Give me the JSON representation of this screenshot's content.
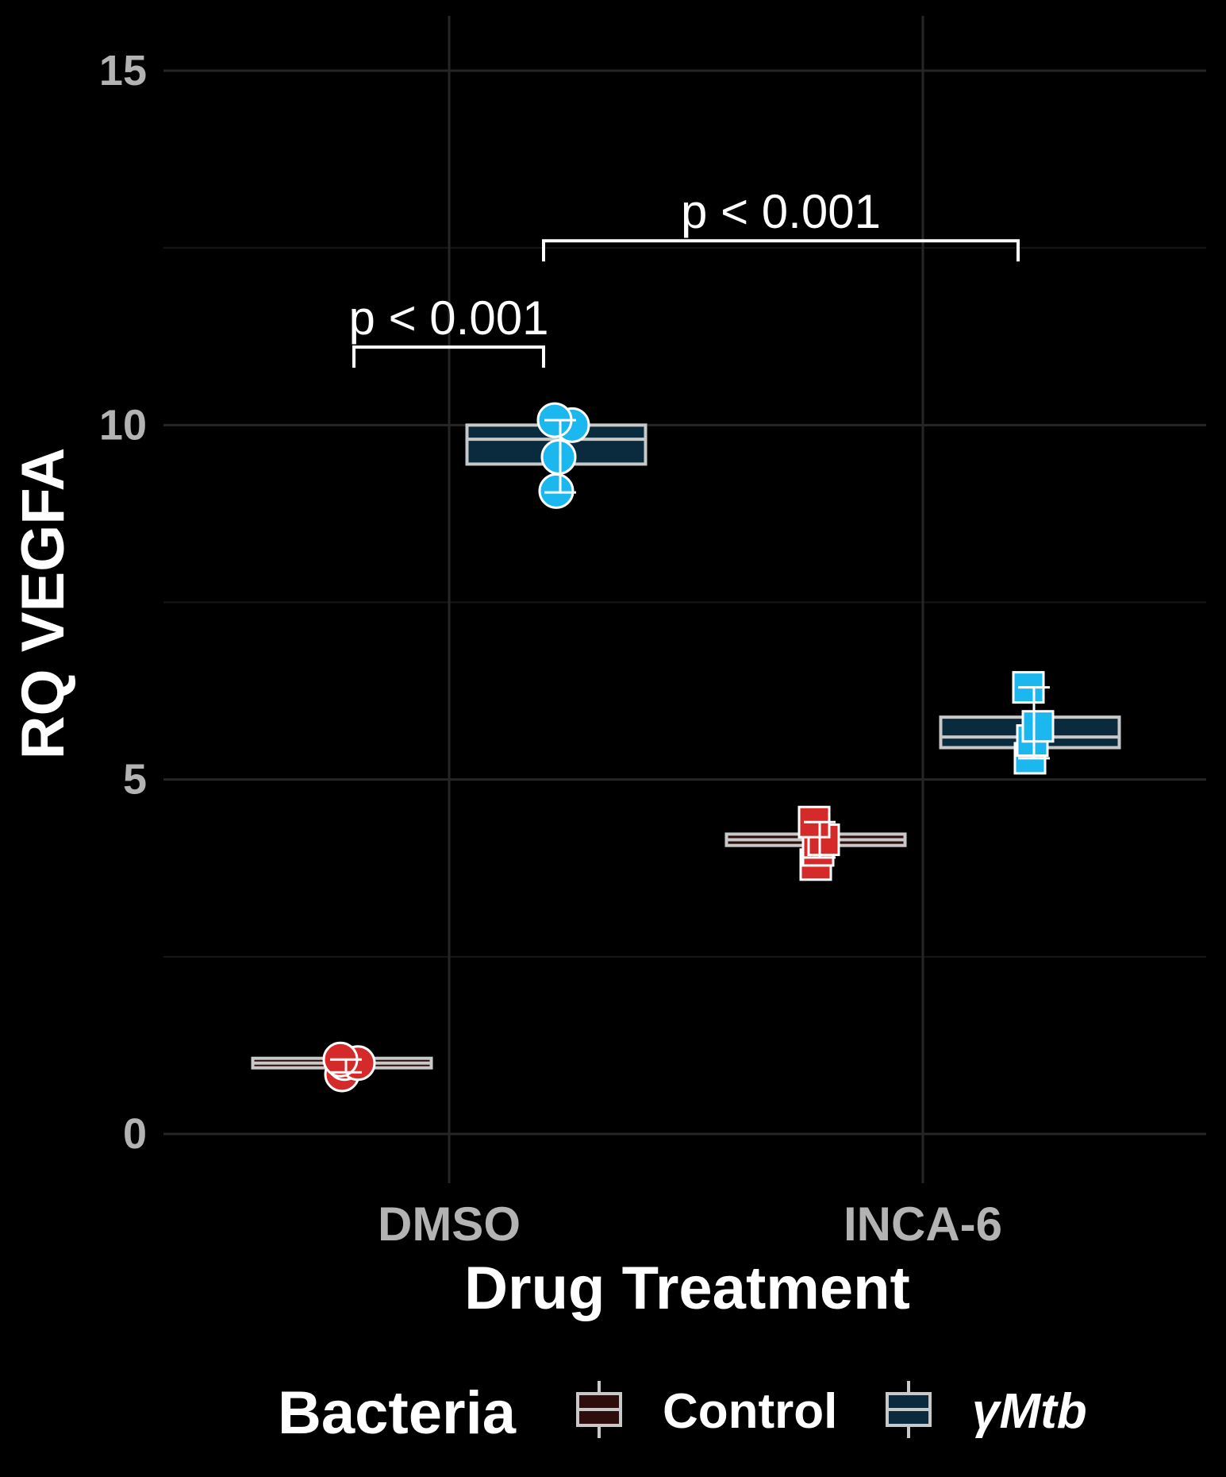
{
  "chart_data": {
    "type": "box",
    "xlabel": "Drug Treatment",
    "ylabel": "RQ VEGFA",
    "ylim": [
      -0.5,
      15.5
    ],
    "yticks": [
      0,
      5,
      10,
      15
    ],
    "categories": [
      "DMSO",
      "INCA-6"
    ],
    "grid": true,
    "legend": {
      "title": "Bacteria",
      "position": "bottom",
      "entries": [
        "Control",
        "γMtb"
      ]
    },
    "series": [
      {
        "name": "Control",
        "box_fill": "#2e0d0d",
        "point_color": "#d42a2a",
        "marker": "circle/square",
        "groups": [
          {
            "category": "DMSO",
            "q1": 0.98,
            "median": 1.0,
            "q3": 1.02,
            "whisker_low": 0.87,
            "whisker_high": 1.05,
            "points": [
              0.84,
              1.0,
              1.0,
              1.05
            ]
          },
          {
            "category": "INCA-6",
            "q1": 4.07,
            "median": 4.15,
            "q3": 4.23,
            "whisker_low": 3.9,
            "whisker_high": 4.4,
            "points": [
              3.8,
              4.0,
              4.15,
              4.4
            ]
          }
        ]
      },
      {
        "name": "γMtb",
        "box_fill": "#0a2a3e",
        "point_color": "#1ab8ef",
        "marker": "circle/square",
        "groups": [
          {
            "category": "DMSO",
            "q1": 9.45,
            "median": 9.8,
            "q3": 10.0,
            "whisker_low": 9.05,
            "whisker_high": 10.07,
            "points": [
              9.07,
              9.55,
              10.0,
              10.07
            ]
          },
          {
            "category": "INCA-6",
            "q1": 5.45,
            "median": 5.6,
            "q3": 5.88,
            "whisker_low": 5.3,
            "whisker_high": 6.3,
            "points": [
              5.3,
              5.55,
              5.75,
              6.3
            ]
          }
        ]
      }
    ],
    "annotations": [
      {
        "text": "p < 0.001",
        "from": "DMSO:Control",
        "to": "DMSO:γMtb",
        "y": 11.1
      },
      {
        "text": "p < 0.001",
        "from": "DMSO:γMtb",
        "to": "INCA-6:γMtb",
        "y": 12.6
      }
    ]
  }
}
